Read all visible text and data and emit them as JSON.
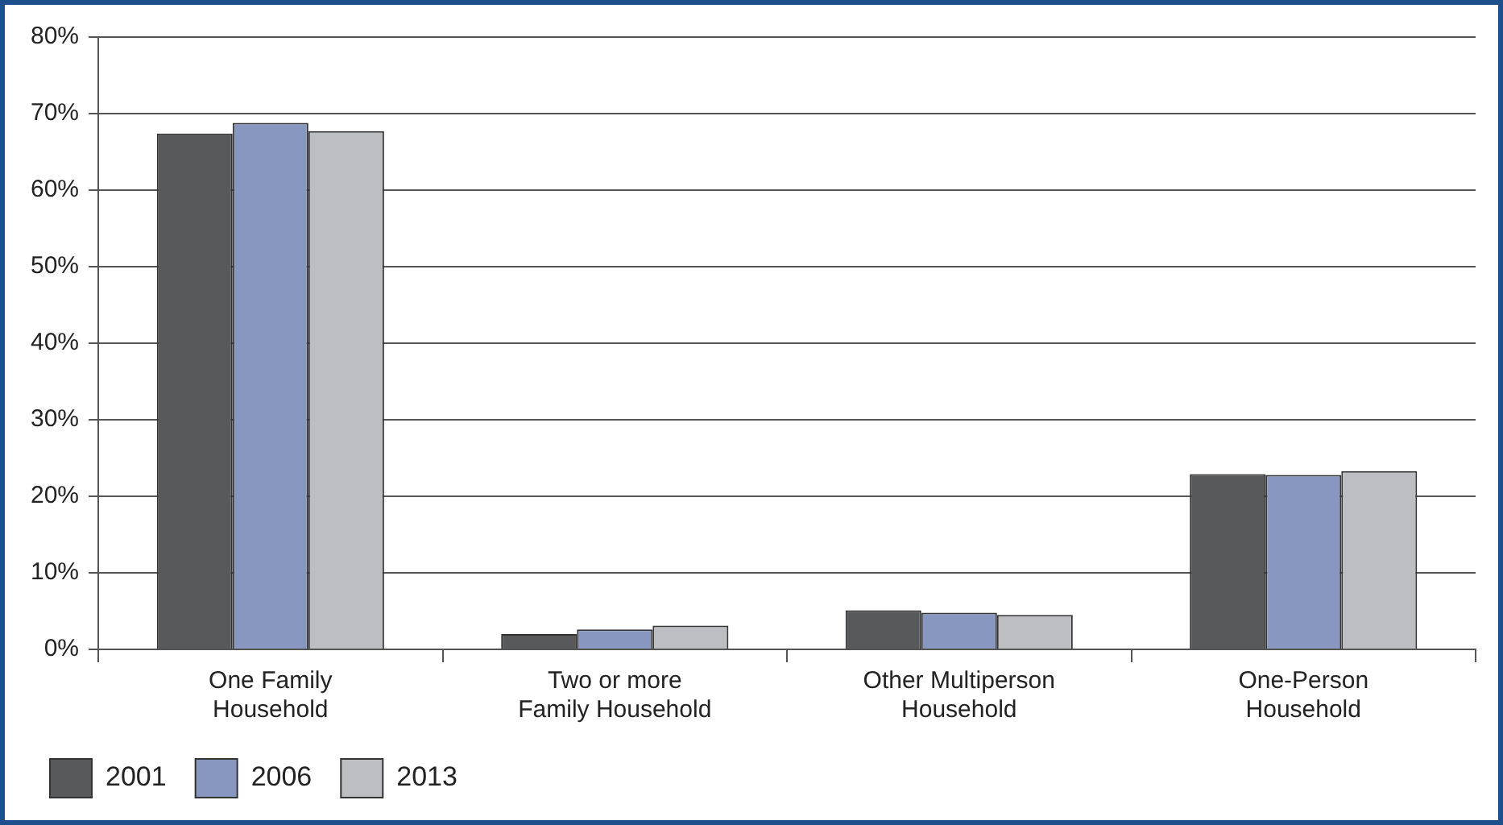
{
  "chart_data": {
    "type": "bar",
    "categories": [
      "One Family\nHousehold",
      "Two or more\nFamily Household",
      "Other Multiperson\nHousehold",
      "One-Person\nHousehold"
    ],
    "series": [
      {
        "name": "2001",
        "color": "#58595b",
        "values": [
          67.4,
          2.0,
          5.1,
          22.9
        ]
      },
      {
        "name": "2006",
        "color": "#8797c0",
        "values": [
          68.8,
          2.6,
          4.8,
          22.8
        ]
      },
      {
        "name": "2013",
        "color": "#bdbec1",
        "values": [
          67.7,
          3.1,
          4.5,
          23.3
        ]
      }
    ],
    "ylim": [
      0,
      80
    ],
    "yticks": [
      {
        "value": 0,
        "label": "0%"
      },
      {
        "value": 10,
        "label": "10%"
      },
      {
        "value": 20,
        "label": "20%"
      },
      {
        "value": 30,
        "label": "30%"
      },
      {
        "value": 40,
        "label": "40%"
      },
      {
        "value": 50,
        "label": "50%"
      },
      {
        "value": 60,
        "label": "60%"
      },
      {
        "value": 70,
        "label": "70%"
      },
      {
        "value": 80,
        "label": "80%"
      }
    ],
    "grid": "y",
    "legend": "bottom left"
  }
}
